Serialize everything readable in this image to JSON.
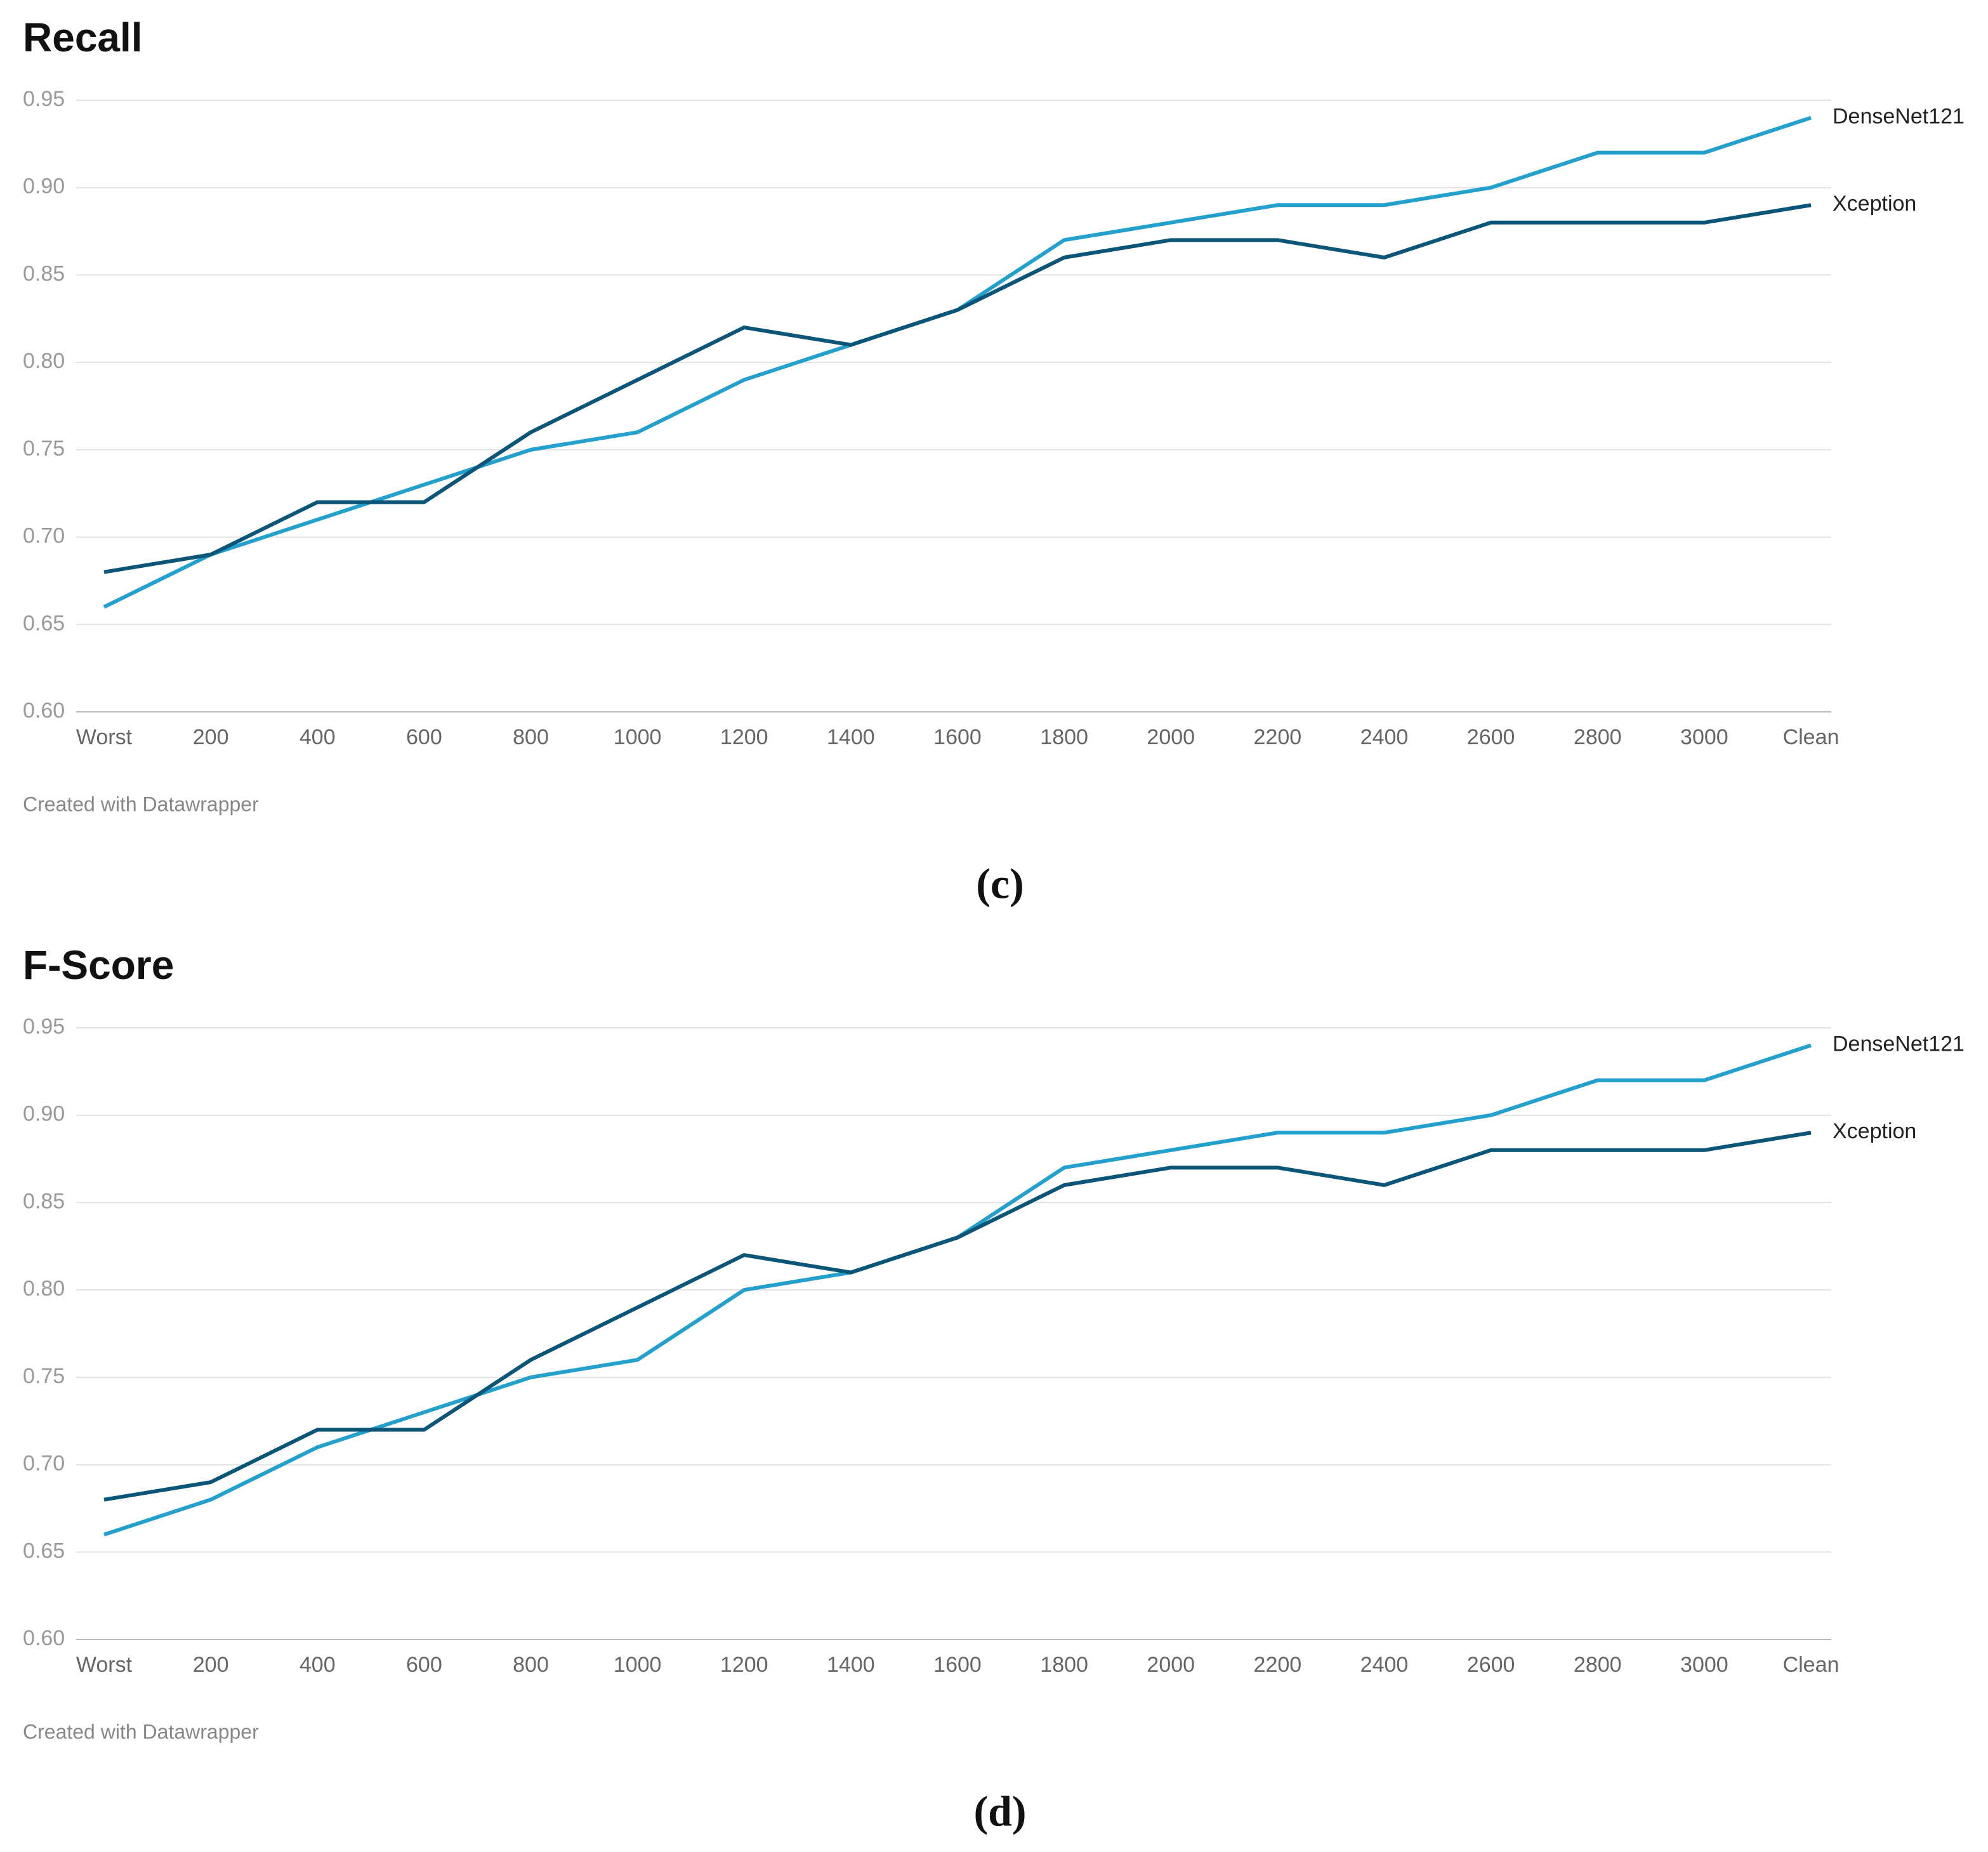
{
  "chart_data": [
    {
      "type": "line",
      "title": "Recall",
      "source": "Created with Datawrapper",
      "panel": "(c)",
      "categories": [
        "Worst",
        "200",
        "400",
        "600",
        "800",
        "1000",
        "1200",
        "1400",
        "1600",
        "1800",
        "2000",
        "2200",
        "2400",
        "2600",
        "2800",
        "3000",
        "Clean"
      ],
      "series": [
        {
          "name": "DenseNet121",
          "color": "#23a0cb",
          "values": [
            0.66,
            0.69,
            0.71,
            0.73,
            0.75,
            0.76,
            0.79,
            0.81,
            0.83,
            0.87,
            0.88,
            0.89,
            0.89,
            0.9,
            0.92,
            0.92,
            0.94
          ]
        },
        {
          "name": "Xception",
          "color": "#0b5578",
          "values": [
            0.68,
            0.69,
            0.72,
            0.72,
            0.76,
            0.79,
            0.82,
            0.81,
            0.83,
            0.86,
            0.87,
            0.87,
            0.86,
            0.88,
            0.88,
            0.88,
            0.89
          ]
        }
      ],
      "ylim": [
        0.6,
        0.95
      ],
      "yticks": [
        {
          "value": 0.6,
          "label": "0.60"
        },
        0.65,
        {
          "value": 0.7,
          "label": "0.70"
        },
        0.75,
        {
          "value": 0.8,
          "label": "0.80"
        },
        0.85,
        {
          "value": 0.9,
          "label": "0.90"
        },
        0.95
      ],
      "grid": true
    },
    {
      "type": "line",
      "title": "F-Score",
      "source": "Created with Datawrapper",
      "panel": "(d)",
      "categories": [
        "Worst",
        "200",
        "400",
        "600",
        "800",
        "1000",
        "1200",
        "1400",
        "1600",
        "1800",
        "2000",
        "2200",
        "2400",
        "2600",
        "2800",
        "3000",
        "Clean"
      ],
      "series": [
        {
          "name": "DenseNet121",
          "color": "#23a0cb",
          "values": [
            0.66,
            0.68,
            0.71,
            0.73,
            0.75,
            0.76,
            0.8,
            0.81,
            0.83,
            0.87,
            0.88,
            0.89,
            0.89,
            0.9,
            0.92,
            0.92,
            0.94
          ]
        },
        {
          "name": "Xception",
          "color": "#0b5578",
          "values": [
            0.68,
            0.69,
            0.72,
            0.72,
            0.76,
            0.79,
            0.82,
            0.81,
            0.83,
            0.86,
            0.87,
            0.87,
            0.86,
            0.88,
            0.88,
            0.88,
            0.89
          ]
        }
      ],
      "ylim": [
        0.6,
        0.95
      ],
      "yticks": [
        {
          "value": 0.6,
          "label": "0.60"
        },
        0.65,
        {
          "value": 0.7,
          "label": "0.70"
        },
        0.75,
        {
          "value": 0.8,
          "label": "0.80"
        },
        0.85,
        {
          "value": 0.9,
          "label": "0.90"
        },
        0.95
      ],
      "grid": true
    }
  ]
}
